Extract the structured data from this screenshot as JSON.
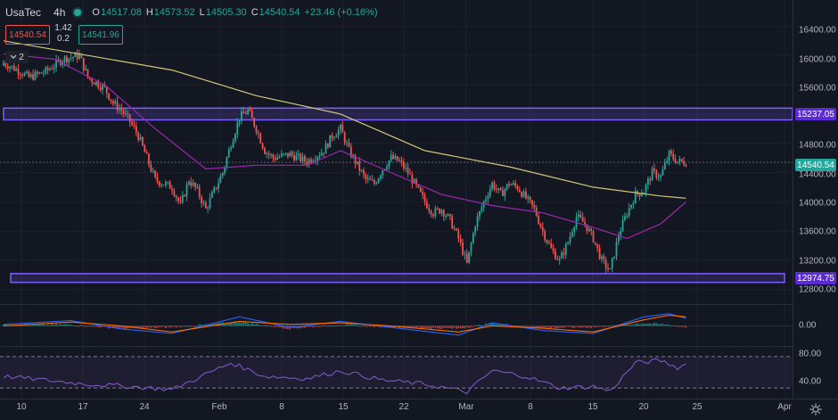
{
  "legend": {
    "symbol": "UsaTec",
    "timeframe": "4h",
    "open_key": "O",
    "open": "14517.08",
    "high_key": "H",
    "high": "14573.52",
    "low_key": "L",
    "low": "14505.30",
    "close_key": "C",
    "close": "14540.54",
    "change": "+23.46 (+0.16%)"
  },
  "trade": {
    "sell_price": "14540.54",
    "spread_top": "1.42",
    "spread_bottom": "0.2",
    "buy_price": "14541.96"
  },
  "collapse": {
    "count": "2"
  },
  "price_axis": {
    "labels": [
      "16400.00",
      "16000.00",
      "15600.00",
      "14800.00",
      "14400.00",
      "14000.00",
      "13600.00",
      "13200.00",
      "12800.00"
    ],
    "upper_level_tag": "15237.05",
    "last_price_tag": "14540.54",
    "lower_level_tag": "12974.75"
  },
  "macd_axis": {
    "zero_label": "0.00"
  },
  "rsi_axis": {
    "upper_label": "80.00",
    "lower_label": "40.00"
  },
  "time_axis": [
    "10",
    "17",
    "24",
    "Feb",
    "8",
    "15",
    "22",
    "Mar",
    "8",
    "15",
    "20",
    "25",
    "Apr"
  ],
  "colors": {
    "bull": "#26a69a",
    "bear": "#ef5350",
    "ma_long": "#d4c679",
    "ma_short": "#9c27b0",
    "zone": "#7b5cff",
    "rsi": "#7e57c2",
    "macd": "#2962ff",
    "signal": "#ff6d00"
  },
  "chart_data": {
    "type": "candlestick",
    "symbol": "UsaTec",
    "timeframe": "4h",
    "y_range": [
      12640,
      16660
    ],
    "last_price": 14540.54,
    "horizontal_zones": [
      {
        "low": 15120,
        "high": 15280,
        "label": "15237.05"
      },
      {
        "low": 12900,
        "high": 13020,
        "label": "12974.75"
      }
    ],
    "close_path": [
      {
        "x": 0,
        "y": 15900
      },
      {
        "x": 2,
        "y": 15780
      },
      {
        "x": 3,
        "y": 15700
      },
      {
        "x": 5,
        "y": 15780
      },
      {
        "x": 7,
        "y": 15950
      },
      {
        "x": 9,
        "y": 16000
      },
      {
        "x": 10,
        "y": 15700
      },
      {
        "x": 12,
        "y": 15550
      },
      {
        "x": 13,
        "y": 15350
      },
      {
        "x": 14,
        "y": 15250
      },
      {
        "x": 15,
        "y": 15100
      },
      {
        "x": 16,
        "y": 14900
      },
      {
        "x": 17,
        "y": 14600
      },
      {
        "x": 18,
        "y": 14300
      },
      {
        "x": 20,
        "y": 14200
      },
      {
        "x": 21,
        "y": 13950
      },
      {
        "x": 22,
        "y": 14300
      },
      {
        "x": 23,
        "y": 14150
      },
      {
        "x": 24,
        "y": 13900
      },
      {
        "x": 26,
        "y": 14400
      },
      {
        "x": 27,
        "y": 14800
      },
      {
        "x": 28,
        "y": 15150
      },
      {
        "x": 29,
        "y": 15250
      },
      {
        "x": 30,
        "y": 15000
      },
      {
        "x": 31,
        "y": 14700
      },
      {
        "x": 32,
        "y": 14600
      },
      {
        "x": 34,
        "y": 14650
      },
      {
        "x": 36,
        "y": 14550
      },
      {
        "x": 38,
        "y": 14700
      },
      {
        "x": 39,
        "y": 14900
      },
      {
        "x": 40,
        "y": 15000
      },
      {
        "x": 41,
        "y": 14700
      },
      {
        "x": 42,
        "y": 14500
      },
      {
        "x": 43,
        "y": 14300
      },
      {
        "x": 44,
        "y": 14250
      },
      {
        "x": 45,
        "y": 14450
      },
      {
        "x": 46,
        "y": 14600
      },
      {
        "x": 47,
        "y": 14550
      },
      {
        "x": 48,
        "y": 14400
      },
      {
        "x": 49,
        "y": 14200
      },
      {
        "x": 50,
        "y": 14000
      },
      {
        "x": 51,
        "y": 13850
      },
      {
        "x": 52,
        "y": 13900
      },
      {
        "x": 53,
        "y": 13750
      },
      {
        "x": 54,
        "y": 13500
      },
      {
        "x": 55,
        "y": 13150
      },
      {
        "x": 56,
        "y": 13700
      },
      {
        "x": 57,
        "y": 14000
      },
      {
        "x": 58,
        "y": 14250
      },
      {
        "x": 59,
        "y": 14100
      },
      {
        "x": 60,
        "y": 14250
      },
      {
        "x": 61,
        "y": 14200
      },
      {
        "x": 62,
        "y": 14050
      },
      {
        "x": 63,
        "y": 13900
      },
      {
        "x": 64,
        "y": 13600
      },
      {
        "x": 65,
        "y": 13350
      },
      {
        "x": 66,
        "y": 13200
      },
      {
        "x": 67,
        "y": 13450
      },
      {
        "x": 68,
        "y": 13800
      },
      {
        "x": 69,
        "y": 13700
      },
      {
        "x": 70,
        "y": 13500
      },
      {
        "x": 71,
        "y": 13200
      },
      {
        "x": 72,
        "y": 13050
      },
      {
        "x": 73,
        "y": 13550
      },
      {
        "x": 74,
        "y": 13850
      },
      {
        "x": 75,
        "y": 14100
      },
      {
        "x": 76,
        "y": 14150
      },
      {
        "x": 77,
        "y": 14400
      },
      {
        "x": 78,
        "y": 14350
      },
      {
        "x": 79,
        "y": 14650
      },
      {
        "x": 80,
        "y": 14550
      },
      {
        "x": 81,
        "y": 14540
      }
    ],
    "ma_long": [
      {
        "x": 0,
        "y": 16200
      },
      {
        "x": 10,
        "y": 16000
      },
      {
        "x": 20,
        "y": 15800
      },
      {
        "x": 30,
        "y": 15450
      },
      {
        "x": 40,
        "y": 15200
      },
      {
        "x": 50,
        "y": 14700
      },
      {
        "x": 60,
        "y": 14480
      },
      {
        "x": 70,
        "y": 14200
      },
      {
        "x": 78,
        "y": 14080
      },
      {
        "x": 81,
        "y": 14050
      }
    ],
    "ma_short": [
      {
        "x": 0,
        "y": 16020
      },
      {
        "x": 6,
        "y": 15950
      },
      {
        "x": 12,
        "y": 15600
      },
      {
        "x": 18,
        "y": 15000
      },
      {
        "x": 24,
        "y": 14450
      },
      {
        "x": 30,
        "y": 14500
      },
      {
        "x": 36,
        "y": 14500
      },
      {
        "x": 40,
        "y": 14700
      },
      {
        "x": 46,
        "y": 14400
      },
      {
        "x": 52,
        "y": 14100
      },
      {
        "x": 58,
        "y": 13950
      },
      {
        "x": 64,
        "y": 13850
      },
      {
        "x": 70,
        "y": 13650
      },
      {
        "x": 74,
        "y": 13500
      },
      {
        "x": 78,
        "y": 13700
      },
      {
        "x": 81,
        "y": 14000
      }
    ],
    "macd": {
      "y_range": [
        -120,
        120
      ],
      "macd_line": [
        {
          "x": 0,
          "y": 10
        },
        {
          "x": 8,
          "y": 35
        },
        {
          "x": 14,
          "y": -20
        },
        {
          "x": 20,
          "y": -50
        },
        {
          "x": 28,
          "y": 60
        },
        {
          "x": 34,
          "y": -10
        },
        {
          "x": 40,
          "y": 30
        },
        {
          "x": 46,
          "y": -10
        },
        {
          "x": 54,
          "y": -60
        },
        {
          "x": 58,
          "y": 20
        },
        {
          "x": 64,
          "y": -30
        },
        {
          "x": 70,
          "y": -50
        },
        {
          "x": 76,
          "y": 60
        },
        {
          "x": 79,
          "y": 80
        },
        {
          "x": 81,
          "y": 50
        }
      ],
      "signal_line": [
        {
          "x": 0,
          "y": 0
        },
        {
          "x": 8,
          "y": 25
        },
        {
          "x": 14,
          "y": 0
        },
        {
          "x": 20,
          "y": -40
        },
        {
          "x": 28,
          "y": 30
        },
        {
          "x": 34,
          "y": 10
        },
        {
          "x": 40,
          "y": 20
        },
        {
          "x": 46,
          "y": 0
        },
        {
          "x": 54,
          "y": -40
        },
        {
          "x": 58,
          "y": 0
        },
        {
          "x": 64,
          "y": -15
        },
        {
          "x": 70,
          "y": -40
        },
        {
          "x": 76,
          "y": 40
        },
        {
          "x": 79,
          "y": 70
        },
        {
          "x": 81,
          "y": 60
        }
      ]
    },
    "rsi": {
      "y_range": [
        30,
        90
      ],
      "bands": [
        80,
        40
      ],
      "line": [
        {
          "x": 0,
          "y": 55
        },
        {
          "x": 5,
          "y": 50
        },
        {
          "x": 10,
          "y": 45
        },
        {
          "x": 15,
          "y": 42
        },
        {
          "x": 20,
          "y": 38
        },
        {
          "x": 27,
          "y": 72
        },
        {
          "x": 31,
          "y": 55
        },
        {
          "x": 36,
          "y": 52
        },
        {
          "x": 40,
          "y": 62
        },
        {
          "x": 45,
          "y": 50
        },
        {
          "x": 50,
          "y": 45
        },
        {
          "x": 55,
          "y": 35
        },
        {
          "x": 58,
          "y": 62
        },
        {
          "x": 62,
          "y": 55
        },
        {
          "x": 66,
          "y": 40
        },
        {
          "x": 70,
          "y": 42
        },
        {
          "x": 72,
          "y": 36
        },
        {
          "x": 75,
          "y": 72
        },
        {
          "x": 78,
          "y": 75
        },
        {
          "x": 80,
          "y": 66
        },
        {
          "x": 81,
          "y": 70
        }
      ]
    }
  }
}
